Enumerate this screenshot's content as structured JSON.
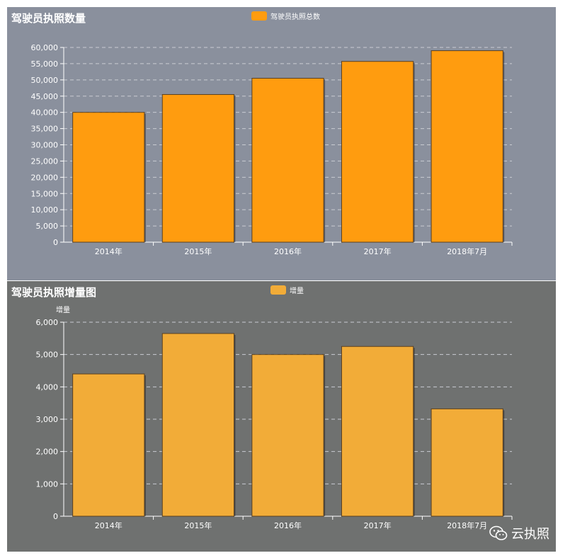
{
  "chart_data": [
    {
      "type": "bar",
      "title": "驾驶员执照数量",
      "legend": [
        "驾驶员执照总数"
      ],
      "categories": [
        "2014年",
        "2015年",
        "2016年",
        "2017年",
        "2018年7月"
      ],
      "series": [
        {
          "name": "驾驶员执照总数",
          "values": [
            40000,
            45500,
            50500,
            55700,
            59000
          ]
        }
      ],
      "yticks": [
        "0",
        "5,000",
        "10,000",
        "15,000",
        "20,000",
        "25,000",
        "30,000",
        "35,000",
        "40,000",
        "45,000",
        "50,000",
        "55,000",
        "60,000"
      ],
      "ylim": [
        0,
        60000
      ],
      "ylabel": "",
      "grid": true,
      "legend_position": "top-center",
      "bar_color": "#ff9c0f",
      "background": "#8a909d"
    },
    {
      "type": "bar",
      "title": "驾驶员执照增量图",
      "legend": [
        "增量"
      ],
      "categories": [
        "2014年",
        "2015年",
        "2016年",
        "2017年",
        "2018年7月"
      ],
      "series": [
        {
          "name": "增量",
          "values": [
            4400,
            5650,
            5000,
            5250,
            3320
          ]
        }
      ],
      "yticks": [
        "0",
        "1,000",
        "2,000",
        "3,000",
        "4,000",
        "5,000",
        "6,000"
      ],
      "ylim": [
        0,
        6000
      ],
      "ylabel": "增量",
      "grid": true,
      "legend_position": "top-center",
      "bar_color": "#f2ac38",
      "background": "#6f7170"
    }
  ],
  "watermark": {
    "text": "云执照",
    "icon": "wechat-icon"
  }
}
